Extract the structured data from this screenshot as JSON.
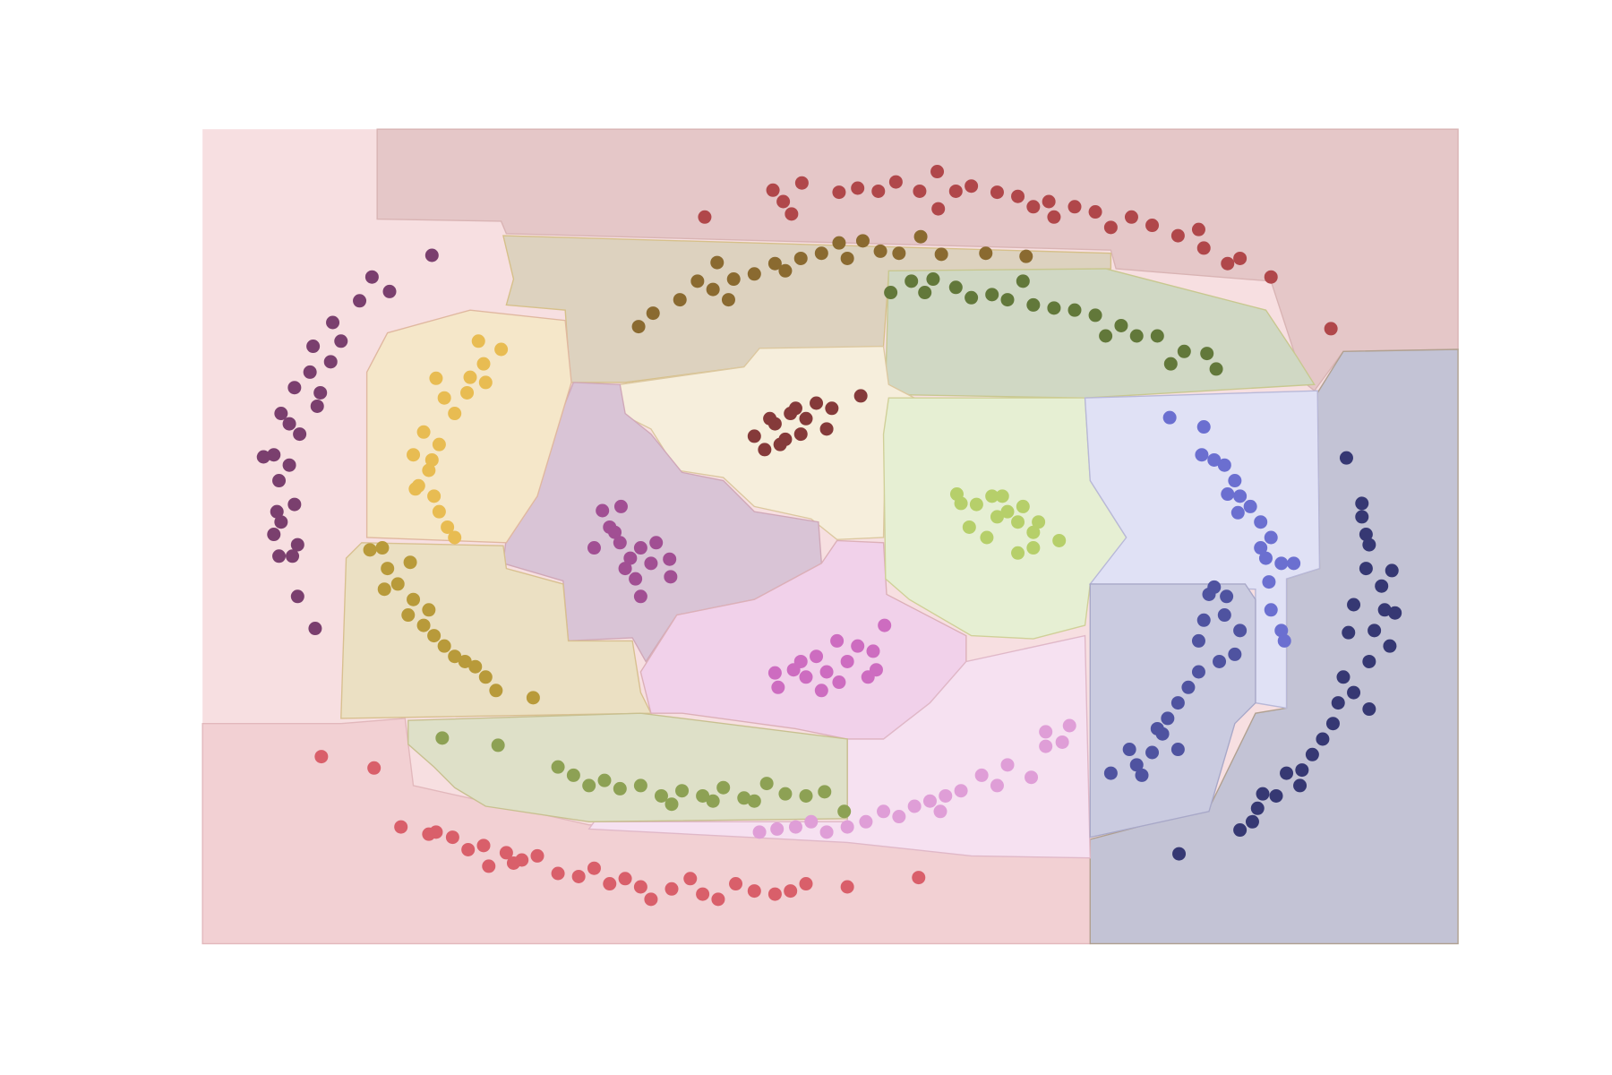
{
  "chart_data": {
    "type": "scatter",
    "xlim": [
      0,
      1215
    ],
    "ylim": [
      0,
      788
    ],
    "series": [
      {
        "color": "#b0474a",
        "x": [
          486,
          552,
          562,
          570,
          580,
          616,
          634,
          654,
          671,
          694,
          711,
          712,
          729,
          744,
          769,
          789,
          804,
          819,
          824,
          844,
          864,
          879,
          899,
          919,
          944,
          964,
          969,
          992,
          1004,
          1034,
          1092
        ],
        "y": [
          703,
          729,
          718,
          706,
          736,
          727,
          731,
          728,
          737,
          728,
          747,
          711,
          728,
          733,
          727,
          723,
          713,
          718,
          703,
          713,
          708,
          693,
          703,
          695,
          685,
          691,
          673,
          658,
          663,
          645,
          595
        ]
      },
      {
        "color": "#8a6a30",
        "x": [
          422,
          436,
          462,
          479,
          494,
          509,
          514,
          534,
          554,
          564,
          579,
          599,
          616,
          624,
          639,
          656,
          674,
          695,
          715,
          758,
          797,
          498
        ],
        "y": [
          597,
          610,
          623,
          641,
          633,
          623,
          643,
          648,
          658,
          651,
          663,
          668,
          678,
          663,
          680,
          670,
          668,
          684,
          667,
          668,
          665,
          659
        ]
      },
      {
        "color": "#62783a",
        "x": [
          666,
          686,
          699,
          707,
          729,
          744,
          764,
          779,
          794,
          804,
          824,
          844,
          864,
          874,
          889,
          904,
          924,
          937,
          950,
          972,
          981
        ],
        "y": [
          630,
          641,
          630,
          643,
          635,
          625,
          628,
          623,
          641,
          618,
          615,
          613,
          608,
          588,
          598,
          588,
          588,
          561,
          573,
          571,
          556
        ]
      },
      {
        "color": "#7a3f6e",
        "x": [
          222,
          164,
          181,
          152,
          126,
          134,
          107,
          104,
          89,
          111,
          76,
          84,
          94,
          69,
          59,
          84,
          74,
          89,
          72,
          76,
          69,
          92,
          74,
          87,
          92,
          109,
          124,
          114
        ],
        "y": [
          666,
          645,
          631,
          622,
          601,
          583,
          578,
          553,
          538,
          520,
          513,
          503,
          493,
          473,
          471,
          463,
          448,
          425,
          418,
          408,
          396,
          386,
          375,
          375,
          336,
          305,
          563,
          533
        ]
      },
      {
        "color": "#e8bc52",
        "x": [
          267,
          289,
          272,
          274,
          226,
          256,
          234,
          244,
          214,
          229,
          204,
          219,
          209,
          224,
          206,
          229,
          237,
          244,
          259,
          222
        ],
        "y": [
          583,
          575,
          561,
          543,
          547,
          533,
          528,
          513,
          495,
          483,
          473,
          458,
          443,
          433,
          440,
          418,
          403,
          393,
          548,
          468
        ]
      },
      {
        "color": "#b89a3a",
        "x": [
          162,
          174,
          179,
          201,
          189,
          204,
          199,
          214,
          224,
          234,
          244,
          254,
          264,
          274,
          284,
          320,
          176,
          219
        ],
        "y": [
          381,
          383,
          363,
          369,
          348,
          333,
          318,
          308,
          298,
          288,
          278,
          273,
          268,
          258,
          245,
          238,
          343,
          323
        ]
      },
      {
        "color": "#853a3a",
        "x": [
          534,
          544,
          554,
          564,
          574,
          584,
          594,
          604,
          579,
          559,
          637,
          549,
          609,
          569
        ],
        "y": [
          491,
          478,
          503,
          488,
          518,
          508,
          523,
          498,
          493,
          483,
          530,
          508,
          518,
          513
        ]
      },
      {
        "color": "#a14f93",
        "x": [
          387,
          405,
          379,
          394,
          404,
          414,
          424,
          434,
          452,
          453,
          424,
          419,
          399,
          409,
          439
        ],
        "y": [
          419,
          423,
          383,
          403,
          388,
          373,
          383,
          368,
          372,
          355,
          336,
          353,
          398,
          363,
          388
        ]
      },
      {
        "color": "#cd6cc0",
        "x": [
          660,
          554,
          557,
          572,
          584,
          599,
          594,
          614,
          624,
          634,
          649,
          652,
          604,
          616,
          644,
          579
        ],
        "y": [
          308,
          262,
          248,
          265,
          258,
          245,
          278,
          293,
          273,
          288,
          283,
          265,
          263,
          253,
          258,
          273
        ]
      },
      {
        "color": "#b6cf6a",
        "x": [
          730,
          734,
          742,
          749,
          764,
          769,
          779,
          789,
          794,
          804,
          809,
          829,
          789,
          804,
          759,
          774
        ],
        "y": [
          435,
          426,
          403,
          425,
          433,
          413,
          418,
          408,
          423,
          398,
          408,
          390,
          378,
          383,
          393,
          433
        ]
      },
      {
        "color": "#6b6fd0",
        "x": [
          936,
          969,
          967,
          979,
          989,
          999,
          1004,
          992,
          1014,
          1024,
          1034,
          1029,
          1044,
          1056,
          1032,
          1034,
          1044,
          1047,
          1024,
          1002
        ],
        "y": [
          509,
          500,
          473,
          468,
          463,
          448,
          433,
          435,
          423,
          408,
          393,
          373,
          368,
          368,
          350,
          323,
          303,
          293,
          383,
          417
        ]
      },
      {
        "color": "#4f53a0",
        "x": [
          979,
          991,
          974,
          989,
          969,
          1004,
          999,
          984,
          964,
          954,
          944,
          934,
          924,
          944,
          919,
          897,
          904,
          879,
          909,
          964,
          929
        ],
        "y": [
          345,
          336,
          338,
          318,
          313,
          303,
          280,
          273,
          263,
          248,
          233,
          218,
          208,
          188,
          185,
          188,
          173,
          165,
          163,
          293,
          203
        ]
      },
      {
        "color": "#363873",
        "x": [
          1107,
          1122,
          1122,
          1126,
          1129,
          1126,
          1141,
          1151,
          1114,
          1144,
          1154,
          1134,
          1149,
          1109,
          1129,
          1104,
          1114,
          1129,
          1099,
          1094,
          1084,
          1074,
          1064,
          1049,
          1039,
          1026,
          1021,
          1016,
          1004,
          945,
          1062
        ],
        "y": [
          470,
          426,
          413,
          396,
          386,
          363,
          346,
          361,
          328,
          323,
          320,
          303,
          288,
          301,
          273,
          258,
          243,
          227,
          233,
          213,
          198,
          183,
          168,
          165,
          143,
          145,
          131,
          118,
          110,
          87,
          153
        ]
      },
      {
        "color": "#8da154",
        "x": [
          232,
          286,
          344,
          359,
          374,
          389,
          404,
          424,
          444,
          464,
          484,
          504,
          524,
          546,
          564,
          584,
          602,
          621,
          454,
          494,
          534
        ],
        "y": [
          199,
          192,
          171,
          163,
          153,
          158,
          150,
          153,
          143,
          148,
          143,
          151,
          141,
          155,
          145,
          143,
          147,
          128,
          135,
          138,
          138
        ]
      },
      {
        "color": "#df9ed7",
        "x": [
          539,
          556,
          574,
          589,
          604,
          624,
          642,
          659,
          674,
          689,
          704,
          719,
          734,
          754,
          769,
          779,
          802,
          816,
          816,
          832,
          839,
          714
        ],
        "y": [
          108,
          111,
          113,
          118,
          108,
          113,
          118,
          128,
          123,
          133,
          138,
          143,
          148,
          163,
          153,
          173,
          161,
          191,
          205,
          195,
          211,
          128
        ]
      },
      {
        "color": "#d95f6a",
        "x": [
          115,
          166,
          192,
          219,
          226,
          242,
          257,
          272,
          277,
          294,
          309,
          324,
          344,
          364,
          379,
          394,
          409,
          424,
          434,
          454,
          472,
          484,
          499,
          516,
          534,
          554,
          569,
          584,
          624,
          693,
          301
        ],
        "y": [
          181,
          170,
          113,
          106,
          108,
          103,
          91,
          95,
          75,
          88,
          81,
          85,
          68,
          65,
          73,
          58,
          63,
          55,
          43,
          53,
          63,
          48,
          43,
          58,
          51,
          48,
          51,
          58,
          55,
          64,
          78
        ]
      }
    ]
  }
}
